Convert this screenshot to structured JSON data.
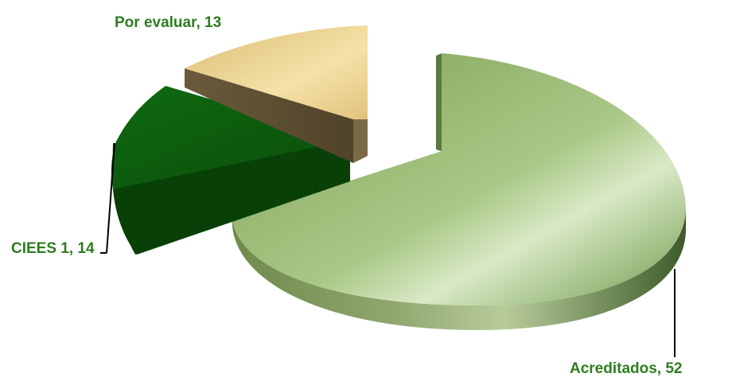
{
  "chart_data": {
    "type": "pie",
    "style": "3d-exploded",
    "slices": [
      {
        "name": "Acreditados",
        "value": 52,
        "label": "Acreditados, 52",
        "color": "#8fb26a"
      },
      {
        "name": "CIEES 1",
        "value": 14,
        "label": "CIEES 1, 14",
        "color": "#0d5c0d"
      },
      {
        "name": "Por evaluar",
        "value": 13,
        "label": "Por evaluar, 13",
        "color": "#e9cf8c"
      }
    ],
    "label_color": "#2e7d1f",
    "legend": "none"
  }
}
